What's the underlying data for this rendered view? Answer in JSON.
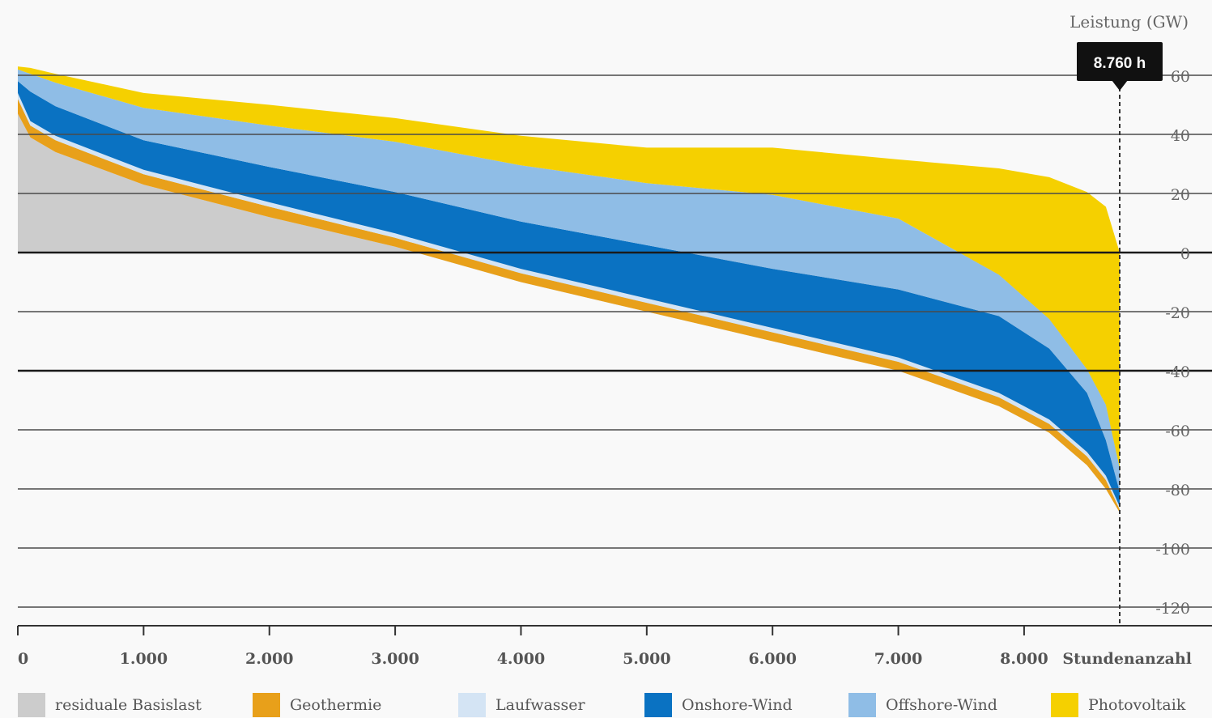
{
  "chart_data": {
    "type": "area",
    "ylabel": "Leistung (GW)",
    "xlabel": "Stundenanzahl",
    "xlim": [
      0,
      8760
    ],
    "ylim": [
      -125,
      65
    ],
    "xticks": [
      0,
      1000,
      2000,
      3000,
      4000,
      5000,
      6000,
      7000,
      8000
    ],
    "xtick_labels": [
      "0",
      "1.000",
      "2.000",
      "3.000",
      "4.000",
      "5.000",
      "6.000",
      "7.000",
      "8.000"
    ],
    "yticks": [
      60,
      40,
      20,
      0,
      -20,
      -40,
      -60,
      -80,
      -100,
      -120
    ],
    "ytick_labels": [
      "60",
      "40",
      "20",
      "0",
      "-20",
      "-40",
      "-60",
      "-80",
      "-100",
      "-120"
    ],
    "marker": {
      "x": 8760,
      "label": "8.760 h"
    },
    "legend_position": "bottom",
    "x": [
      0,
      100,
      300,
      1000,
      2000,
      3000,
      4000,
      5000,
      6000,
      7000,
      7800,
      8200,
      8500,
      8650,
      8760
    ],
    "series": [
      {
        "name": "residuale Basislast",
        "color": "#cccccc",
        "values": [
          47,
          39,
          34,
          23,
          12,
          2,
          -10,
          -20,
          -30,
          -40,
          -52,
          -61,
          -72,
          -80,
          -88
        ]
      },
      {
        "name": "Geothermie",
        "color": "#e8a01a",
        "values": [
          5,
          4,
          4,
          3.5,
          3.5,
          3,
          3,
          3,
          3,
          3,
          3,
          3,
          3,
          3,
          1
        ]
      },
      {
        "name": "Laufwasser",
        "color": "#d4e4f4",
        "values": [
          2,
          1.5,
          1.5,
          1.5,
          1.5,
          1.5,
          1.5,
          1.5,
          1.5,
          1.5,
          1.5,
          1.5,
          1.5,
          1.5,
          1
        ]
      },
      {
        "name": "Onshore-Wind",
        "color": "#0a72c2",
        "values": [
          4,
          10,
          10,
          10,
          12,
          14,
          16,
          18,
          20,
          23,
          26,
          24,
          20,
          12,
          5
        ]
      },
      {
        "name": "Offshore-Wind",
        "color": "#8fbde6",
        "values": [
          4,
          6,
          8,
          11,
          14,
          17,
          19,
          21,
          25,
          24,
          14,
          10,
          8,
          12,
          8
        ]
      },
      {
        "name": "Photovoltaik",
        "color": "#f5d000",
        "values": [
          1,
          2,
          3,
          5,
          7,
          8,
          10,
          12,
          16,
          20,
          36,
          48,
          60,
          67,
          73
        ]
      }
    ]
  }
}
